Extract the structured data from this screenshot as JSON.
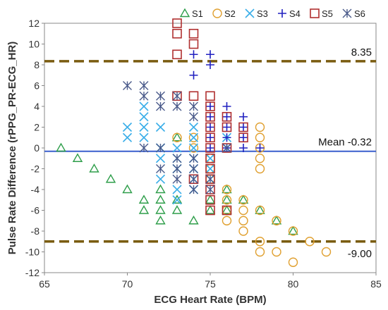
{
  "chart_data": {
    "type": "scatter",
    "xlabel": "ECG Heart Rate (BPM)",
    "ylabel": "Pulse Rate Difference (rPPG_PR-ECG_HR)",
    "xlim": [
      65,
      85
    ],
    "ylim": [
      -12,
      12
    ],
    "x_ticks": [
      "65",
      "70",
      "75",
      "80",
      "85"
    ],
    "y_ticks": [
      "-12",
      "-10",
      "-8",
      "-6",
      "-4",
      "-2",
      "0",
      "2",
      "4",
      "6",
      "8",
      "10",
      "12"
    ],
    "grid": false,
    "legend_position": "top",
    "reference_lines": [
      {
        "label": "8.35",
        "y": 8.35,
        "style": "dashed",
        "color": "#7a5c10"
      },
      {
        "label": "Mean -0.32",
        "y": -0.32,
        "style": "solid",
        "color": "#3a5fcd"
      },
      {
        "label": "-9.00",
        "y": -9.0,
        "style": "dashed",
        "color": "#7a5c10"
      }
    ],
    "series": [
      {
        "name": "S1",
        "marker": "triangle",
        "color": "#2e9e4a",
        "points": [
          [
            66,
            0
          ],
          [
            67,
            -1
          ],
          [
            68,
            -2
          ],
          [
            69,
            -3
          ],
          [
            70,
            -4
          ],
          [
            71,
            -5
          ],
          [
            71,
            -6
          ],
          [
            72,
            -4
          ],
          [
            72,
            -5
          ],
          [
            72,
            -6
          ],
          [
            72,
            -7
          ],
          [
            73,
            -5
          ],
          [
            73,
            -6
          ],
          [
            73,
            1
          ],
          [
            74,
            -7
          ],
          [
            75,
            -5
          ],
          [
            75,
            -6
          ],
          [
            76,
            -4
          ],
          [
            76,
            -5
          ],
          [
            76,
            -6
          ],
          [
            77,
            -5
          ],
          [
            78,
            -6
          ],
          [
            79,
            -7
          ],
          [
            80,
            -8
          ]
        ]
      },
      {
        "name": "S2",
        "marker": "circle",
        "color": "#e0a030",
        "points": [
          [
            73,
            1
          ],
          [
            74,
            1
          ],
          [
            74,
            0
          ],
          [
            75,
            -1
          ],
          [
            75,
            -2
          ],
          [
            75,
            -3
          ],
          [
            76,
            -4
          ],
          [
            76,
            -5
          ],
          [
            76,
            -6
          ],
          [
            76,
            -7
          ],
          [
            77,
            -5
          ],
          [
            77,
            -6
          ],
          [
            77,
            -7
          ],
          [
            77,
            -8
          ],
          [
            78,
            2
          ],
          [
            78,
            1
          ],
          [
            78,
            0
          ],
          [
            78,
            -1
          ],
          [
            78,
            -2
          ],
          [
            78,
            -6
          ],
          [
            78,
            -9
          ],
          [
            78,
            -10
          ],
          [
            79,
            -7
          ],
          [
            79,
            -10
          ],
          [
            80,
            -8
          ],
          [
            80,
            -11
          ],
          [
            81,
            -9
          ],
          [
            82,
            -10
          ]
        ]
      },
      {
        "name": "S3",
        "marker": "x",
        "color": "#3aaee8",
        "points": [
          [
            70,
            2
          ],
          [
            70,
            1
          ],
          [
            71,
            4
          ],
          [
            71,
            3
          ],
          [
            71,
            2
          ],
          [
            71,
            1
          ],
          [
            72,
            2
          ],
          [
            72,
            0
          ],
          [
            72,
            -1
          ],
          [
            72,
            -3
          ],
          [
            73,
            0
          ],
          [
            73,
            -1
          ],
          [
            73,
            -2
          ],
          [
            73,
            -4
          ],
          [
            73,
            -5
          ],
          [
            74,
            2
          ],
          [
            74,
            1
          ],
          [
            74,
            0
          ],
          [
            74,
            -1
          ],
          [
            74,
            -2
          ],
          [
            74,
            -3
          ],
          [
            74,
            -4
          ],
          [
            75,
            -1
          ],
          [
            75,
            -2
          ],
          [
            75,
            -3
          ],
          [
            76,
            1
          ],
          [
            76,
            0
          ]
        ]
      },
      {
        "name": "S4",
        "marker": "plus",
        "color": "#2020c0",
        "points": [
          [
            74,
            9
          ],
          [
            74,
            7
          ],
          [
            75,
            9
          ],
          [
            75,
            8
          ],
          [
            75,
            4
          ],
          [
            75,
            3
          ],
          [
            75,
            2
          ],
          [
            75,
            1
          ],
          [
            75,
            0
          ],
          [
            76,
            4
          ],
          [
            76,
            3
          ],
          [
            76,
            2
          ],
          [
            76,
            1
          ],
          [
            76,
            0
          ],
          [
            77,
            3
          ],
          [
            77,
            2
          ],
          [
            77,
            1
          ],
          [
            77,
            0
          ],
          [
            78,
            0
          ]
        ]
      },
      {
        "name": "S5",
        "marker": "square",
        "color": "#b03030",
        "points": [
          [
            73,
            12
          ],
          [
            73,
            11
          ],
          [
            73,
            9
          ],
          [
            73,
            5
          ],
          [
            74,
            11
          ],
          [
            74,
            10
          ],
          [
            74,
            5
          ],
          [
            74,
            -3
          ],
          [
            75,
            5
          ],
          [
            75,
            4
          ],
          [
            75,
            3
          ],
          [
            75,
            2
          ],
          [
            75,
            1
          ],
          [
            75,
            0
          ],
          [
            75,
            -1
          ],
          [
            75,
            -2
          ],
          [
            75,
            -3
          ],
          [
            75,
            -4
          ],
          [
            75,
            -5
          ],
          [
            75,
            -6
          ],
          [
            76,
            3
          ],
          [
            76,
            2
          ],
          [
            76,
            0
          ],
          [
            76,
            -6
          ],
          [
            77,
            2
          ],
          [
            77,
            1
          ]
        ]
      },
      {
        "name": "S6",
        "marker": "asterisk",
        "color": "#4a5a8a",
        "points": [
          [
            70,
            6
          ],
          [
            71,
            6
          ],
          [
            71,
            5
          ],
          [
            71,
            0
          ],
          [
            72,
            5
          ],
          [
            72,
            4
          ],
          [
            72,
            0
          ],
          [
            72,
            -2
          ],
          [
            73,
            5
          ],
          [
            73,
            4
          ],
          [
            73,
            -1
          ],
          [
            73,
            -2
          ],
          [
            73,
            -3
          ],
          [
            74,
            4
          ],
          [
            74,
            3
          ],
          [
            74,
            -1
          ],
          [
            74,
            -2
          ],
          [
            74,
            -3
          ],
          [
            74,
            -4
          ],
          [
            75,
            -3
          ],
          [
            75,
            -4
          ],
          [
            76,
            0
          ]
        ]
      }
    ]
  }
}
